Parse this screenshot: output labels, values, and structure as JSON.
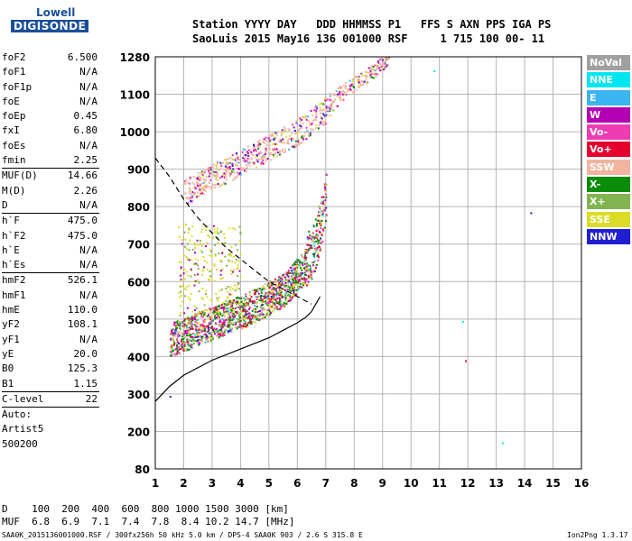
{
  "logo": {
    "line1": "Lowell",
    "line2": "DIGISONDE"
  },
  "header": {
    "row1": "Station YYYY DAY   DDD HHMMSS P1   FFS S AXN PPS IGA PS",
    "row2": "SaoLuis 2015 May16 136 001000 RSF     1 715 100 00- 11"
  },
  "params": {
    "group1": [
      {
        "label": "foF2",
        "value": "6.500"
      },
      {
        "label": "foF1",
        "value": "N/A"
      },
      {
        "label": "foF1p",
        "value": "N/A"
      },
      {
        "label": "foE",
        "value": "N/A"
      },
      {
        "label": "foEp",
        "value": "0.45"
      },
      {
        "label": "fxI",
        "value": "6.80"
      },
      {
        "label": "foEs",
        "value": "N/A"
      },
      {
        "label": "fmin",
        "value": "2.25"
      }
    ],
    "group2": [
      {
        "label": "MUF(D)",
        "value": "14.66"
      },
      {
        "label": "M(D)",
        "value": "2.26"
      },
      {
        "label": "D",
        "value": "N/A"
      }
    ],
    "group3": [
      {
        "label": "h`F",
        "value": "475.0"
      },
      {
        "label": "h`F2",
        "value": "475.0"
      },
      {
        "label": "h`E",
        "value": "N/A"
      },
      {
        "label": "h`Es",
        "value": "N/A"
      }
    ],
    "group4": [
      {
        "label": "hmF2",
        "value": "526.1"
      },
      {
        "label": "hmF1",
        "value": "N/A"
      },
      {
        "label": "hmE",
        "value": "110.0"
      },
      {
        "label": "yF2",
        "value": "108.1"
      },
      {
        "label": "yF1",
        "value": "N/A"
      },
      {
        "label": "yE",
        "value": "20.0"
      },
      {
        "label": "B0",
        "value": "125.3"
      },
      {
        "label": "B1",
        "value": "1.15"
      }
    ],
    "group5": [
      {
        "label": "C-level",
        "value": "22"
      }
    ],
    "auto": [
      "Auto:",
      "Artist5",
      "500200"
    ]
  },
  "legend": [
    {
      "name": "NoVal",
      "color": "#a0a0a0"
    },
    {
      "name": "NNE",
      "color": "#00e6f0"
    },
    {
      "name": "E",
      "color": "#3cb4f0"
    },
    {
      "name": "W",
      "color": "#b400b4"
    },
    {
      "name": "Vo-",
      "color": "#f03cb4"
    },
    {
      "name": "Vo+",
      "color": "#e6002d"
    },
    {
      "name": "SSW",
      "color": "#f0b4a0"
    },
    {
      "name": "X-",
      "color": "#0a8c0a"
    },
    {
      "name": "X+",
      "color": "#82b450"
    },
    {
      "name": "SSE",
      "color": "#dcdc28"
    },
    {
      "name": "NNW",
      "color": "#1e1ed2"
    }
  ],
  "footer": {
    "row1": "D    100  200  400  600  800 1000 1500 3000 [km]",
    "row2": "MUF  6.8  6.9  7.1  7.4  7.8  8.4 10.2 14.7 [MHz]",
    "file": "SAA0K_2015136001000.RSF / 300fx256h 50 kHz 5.0 km / DPS-4 SAA0K 903 / 2.6 S 315.8 E",
    "version": "Ion2Png 1.3.17"
  },
  "chart_data": {
    "type": "scatter",
    "xlim": [
      1,
      16
    ],
    "ylim": [
      80,
      1280
    ],
    "x_ticks": [
      1,
      2,
      3,
      4,
      5,
      6,
      7,
      8,
      9,
      10,
      11,
      12,
      13,
      14,
      15,
      16
    ],
    "y_ticks": [
      80,
      200,
      300,
      400,
      500,
      600,
      700,
      800,
      900,
      1000,
      1100,
      1280
    ],
    "grid": true,
    "legend_position": "right",
    "series": [
      {
        "name": "NoVal",
        "color": "#a0a0a0"
      },
      {
        "name": "NNE",
        "color": "#00e6f0"
      },
      {
        "name": "E",
        "color": "#3cb4f0"
      },
      {
        "name": "W",
        "color": "#b400b4"
      },
      {
        "name": "Vo-",
        "color": "#f03cb4"
      },
      {
        "name": "Vo+",
        "color": "#e6002d"
      },
      {
        "name": "SSW",
        "color": "#f0b4a0"
      },
      {
        "name": "X-",
        "color": "#0a8c0a"
      },
      {
        "name": "X+",
        "color": "#82b450"
      },
      {
        "name": "SSE",
        "color": "#dcdc28"
      },
      {
        "name": "NNW",
        "color": "#1e1ed2"
      }
    ],
    "trace_first_hop": {
      "x": [
        1.5,
        2.0,
        2.5,
        3.0,
        3.5,
        4.0,
        4.5,
        5.0,
        5.5,
        6.0,
        6.5,
        6.8,
        7.0
      ],
      "y": [
        430,
        440,
        460,
        470,
        490,
        500,
        520,
        540,
        560,
        600,
        650,
        720,
        800
      ]
    },
    "trace_second_hop": {
      "x": [
        2.0,
        3.0,
        4.0,
        5.0,
        6.0,
        6.5,
        7.0,
        7.5,
        8.0,
        8.5,
        9.0,
        9.2
      ],
      "y": [
        840,
        880,
        920,
        960,
        1000,
        1030,
        1060,
        1110,
        1150,
        1200,
        1250,
        1280
      ]
    },
    "profile_solid": {
      "x": [
        1.0,
        1.5,
        2.0,
        3.0,
        4.0,
        5.0,
        5.5,
        6.0,
        6.3,
        6.5
      ],
      "y": [
        280,
        320,
        350,
        390,
        420,
        450,
        470,
        490,
        505,
        520
      ]
    },
    "profile_dashed": {
      "x": [
        1.0,
        1.5,
        2.0,
        2.5,
        3.0,
        3.5,
        4.0,
        4.5,
        5.0,
        5.5,
        6.0,
        6.5
      ],
      "y": [
        930,
        880,
        820,
        770,
        730,
        690,
        660,
        630,
        600,
        580,
        560,
        540
      ]
    }
  }
}
